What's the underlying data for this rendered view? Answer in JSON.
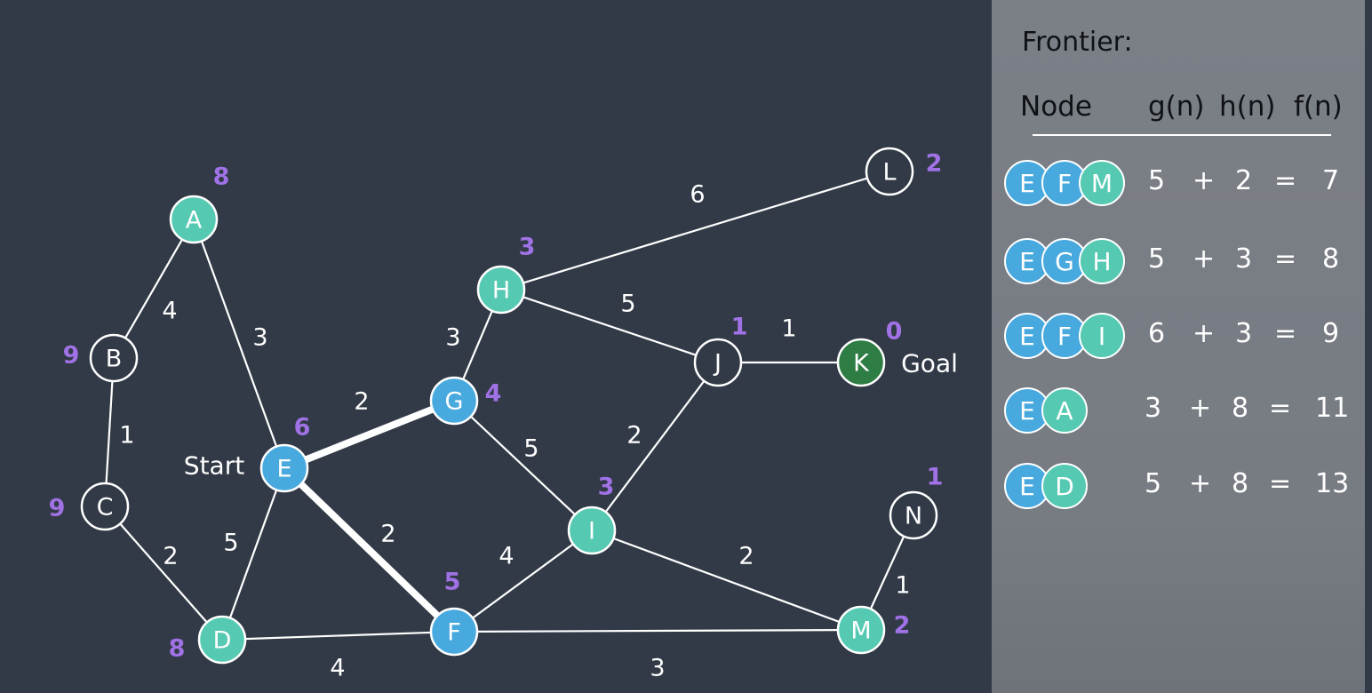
{
  "colors": {
    "background": "#323a47",
    "panel": "#7b7f86",
    "expanded": "#48a9de",
    "frontier": "#56c9b2",
    "unvisited": "#323a47",
    "goal": "#2e7d44",
    "heuristic": "#a072e6",
    "line": "#ffffff"
  },
  "graph": {
    "start_label": "Start",
    "goal_label": "Goal",
    "nodes": [
      {
        "id": "A",
        "label": "A",
        "h": "8",
        "state": "frontier"
      },
      {
        "id": "B",
        "label": "B",
        "h": "9",
        "state": "unvisited"
      },
      {
        "id": "C",
        "label": "C",
        "h": "9",
        "state": "unvisited"
      },
      {
        "id": "D",
        "label": "D",
        "h": "8",
        "state": "frontier"
      },
      {
        "id": "E",
        "label": "E",
        "h": "6",
        "state": "expanded"
      },
      {
        "id": "F",
        "label": "F",
        "h": "5",
        "state": "expanded"
      },
      {
        "id": "G",
        "label": "G",
        "h": "4",
        "state": "expanded"
      },
      {
        "id": "H",
        "label": "H",
        "h": "3",
        "state": "frontier"
      },
      {
        "id": "I",
        "label": "I",
        "h": "3",
        "state": "frontier"
      },
      {
        "id": "J",
        "label": "J",
        "h": "1",
        "state": "unvisited"
      },
      {
        "id": "K",
        "label": "K",
        "h": "0",
        "state": "goal"
      },
      {
        "id": "L",
        "label": "L",
        "h": "2",
        "state": "unvisited"
      },
      {
        "id": "M",
        "label": "M",
        "h": "2",
        "state": "frontier"
      },
      {
        "id": "N",
        "label": "N",
        "h": "1",
        "state": "unvisited"
      }
    ],
    "edges": [
      {
        "from": "A",
        "to": "B",
        "weight": "4",
        "bold": false
      },
      {
        "from": "A",
        "to": "E",
        "weight": "3",
        "bold": false
      },
      {
        "from": "B",
        "to": "C",
        "weight": "1",
        "bold": false
      },
      {
        "from": "C",
        "to": "D",
        "weight": "2",
        "bold": false
      },
      {
        "from": "D",
        "to": "E",
        "weight": "5",
        "bold": false
      },
      {
        "from": "D",
        "to": "F",
        "weight": "4",
        "bold": false
      },
      {
        "from": "E",
        "to": "G",
        "weight": "2",
        "bold": true
      },
      {
        "from": "E",
        "to": "F",
        "weight": "2",
        "bold": true
      },
      {
        "from": "G",
        "to": "H",
        "weight": "3",
        "bold": false
      },
      {
        "from": "G",
        "to": "I",
        "weight": "5",
        "bold": false
      },
      {
        "from": "H",
        "to": "L",
        "weight": "6",
        "bold": false
      },
      {
        "from": "H",
        "to": "J",
        "weight": "5",
        "bold": false
      },
      {
        "from": "J",
        "to": "K",
        "weight": "1",
        "bold": false
      },
      {
        "from": "I",
        "to": "J",
        "weight": "2",
        "bold": false
      },
      {
        "from": "F",
        "to": "I",
        "weight": "4",
        "bold": false
      },
      {
        "from": "I",
        "to": "M",
        "weight": "2",
        "bold": false
      },
      {
        "from": "F",
        "to": "M",
        "weight": "3",
        "bold": false
      },
      {
        "from": "M",
        "to": "N",
        "weight": "1",
        "bold": false
      }
    ]
  },
  "frontier": {
    "title": "Frontier:",
    "headers": {
      "node": "Node",
      "g": "g(n)",
      "h": "h(n)",
      "f": "f(n)"
    },
    "rows": [
      {
        "path": [
          "E",
          "F",
          "M"
        ],
        "g": "5",
        "plus": "+",
        "h": "2",
        "eq": "=",
        "f": "7"
      },
      {
        "path": [
          "E",
          "G",
          "H"
        ],
        "g": "5",
        "plus": "+",
        "h": "3",
        "eq": "=",
        "f": "8"
      },
      {
        "path": [
          "E",
          "F",
          "I"
        ],
        "g": "6",
        "plus": "+",
        "h": "3",
        "eq": "=",
        "f": "9"
      },
      {
        "path": [
          "E",
          "A"
        ],
        "g": "3",
        "plus": "+",
        "h": "8",
        "eq": "=",
        "f": "11"
      },
      {
        "path": [
          "E",
          "D"
        ],
        "g": "5",
        "plus": "+",
        "h": "8",
        "eq": "=",
        "f": "13"
      }
    ]
  }
}
